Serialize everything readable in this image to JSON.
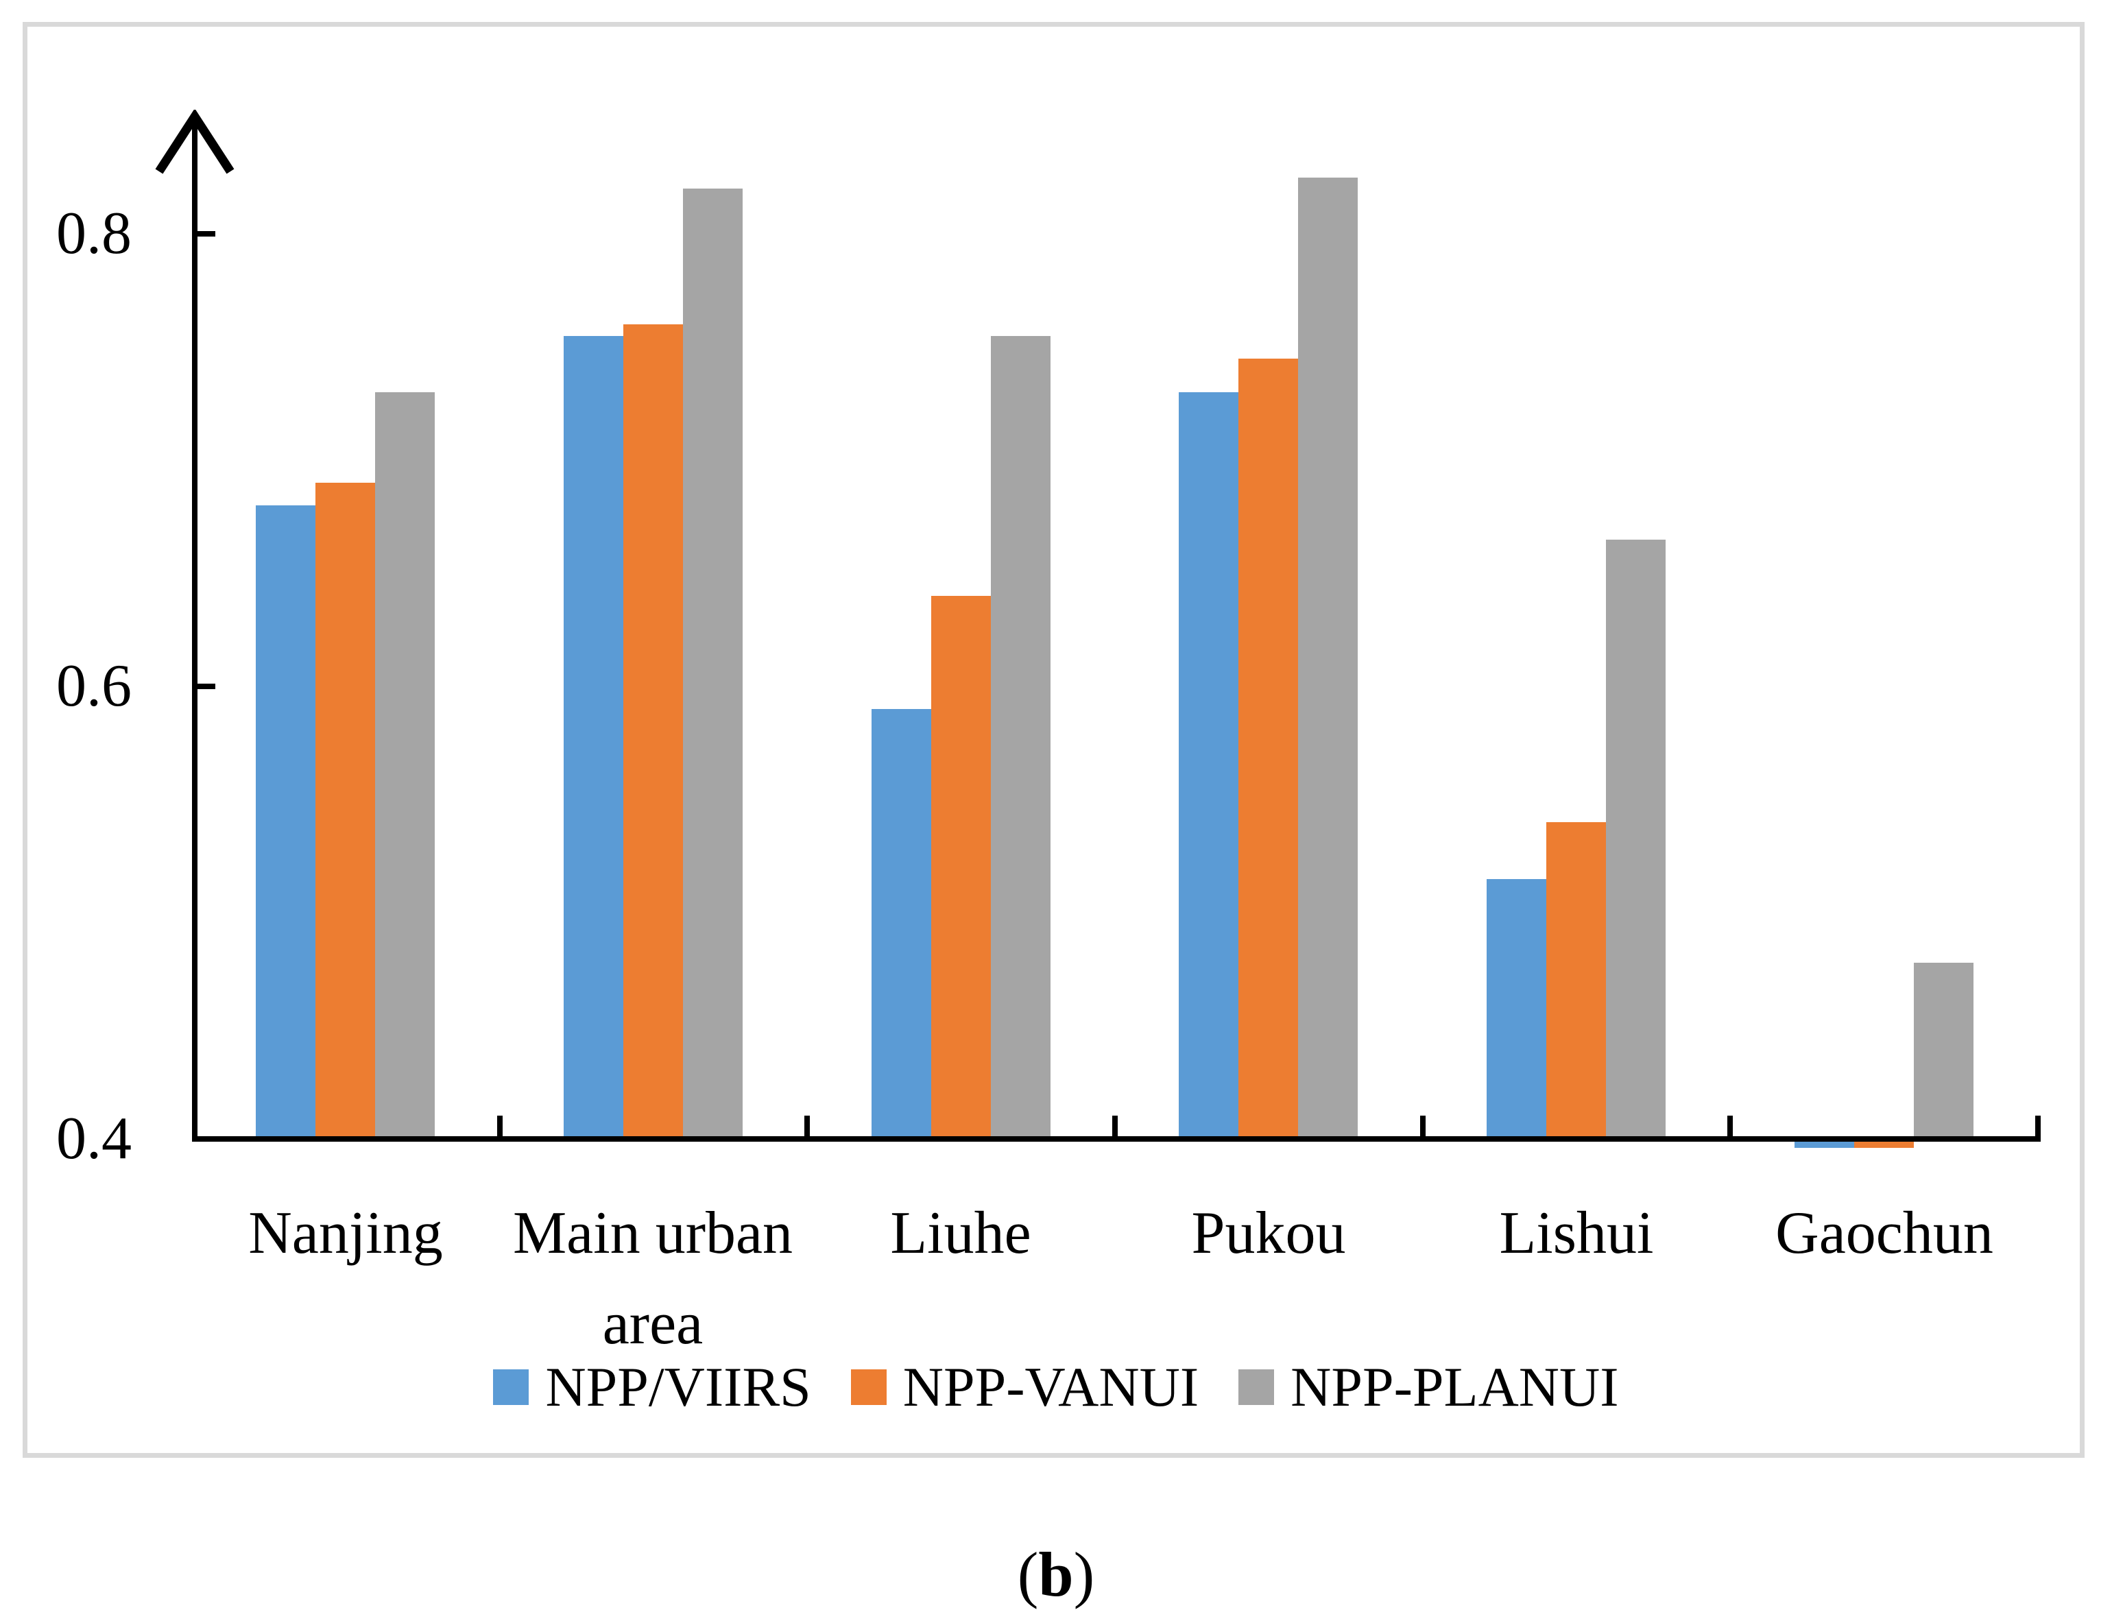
{
  "figure": {
    "caption": {
      "open": "(",
      "letter": "b",
      "close": ")"
    }
  },
  "chart_data": {
    "type": "bar",
    "title": "",
    "xlabel": "",
    "ylabel": "",
    "categories": [
      "Nanjing",
      "Main urban area",
      "Liuhe",
      "Pukou",
      "Lishui",
      "Gaochun"
    ],
    "series": [
      {
        "name": "NPP/VIIRS",
        "color": "#5B9BD5",
        "values": [
          0.68,
          0.755,
          0.59,
          0.73,
          0.515,
          0.4
        ]
      },
      {
        "name": "NPP-VANUI",
        "color": "#ED7D31",
        "values": [
          0.69,
          0.76,
          0.64,
          0.745,
          0.54,
          0.4
        ]
      },
      {
        "name": "NPP-PLANUI",
        "color": "#A5A5A5",
        "values": [
          0.73,
          0.82,
          0.755,
          0.825,
          0.665,
          0.478
        ]
      }
    ],
    "y_axis": {
      "min": 0.4,
      "max": 0.85,
      "ticks": [
        0.4,
        0.6,
        0.8
      ],
      "tick_labels": [
        "0.4",
        "0.6",
        "0.8"
      ]
    },
    "grid": false,
    "legend_position": "bottom"
  }
}
